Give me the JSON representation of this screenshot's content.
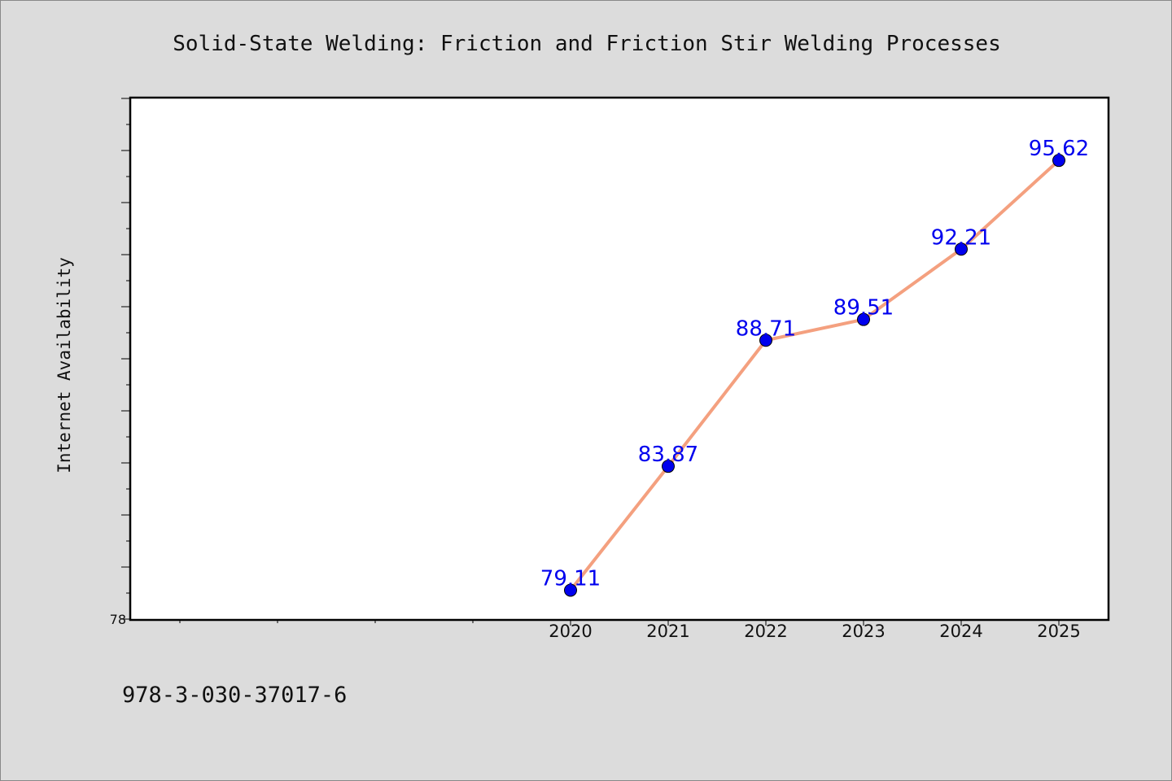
{
  "chart_data": {
    "type": "line",
    "title": "Solid-State Welding: Friction and Friction Stir Welding Processes",
    "xlabel": "",
    "ylabel": "Internet Availability",
    "x_tick_labels": [
      "2020",
      "2021",
      "2022",
      "2023",
      "2024",
      "2025"
    ],
    "y_tick_labels": [
      "78"
    ],
    "ylim": [
      78,
      98
    ],
    "grid": false,
    "series": [
      {
        "x": [
          "2020",
          "2021",
          "2022",
          "2023",
          "2024",
          "2025"
        ],
        "values": [
          79.11,
          83.87,
          88.71,
          89.51,
          92.21,
          95.62
        ],
        "data_labels": [
          "79.11",
          "83.87",
          "88.71",
          "89.51",
          "92.21",
          "95.62"
        ]
      }
    ],
    "colors": {
      "line": "#f4a07f",
      "marker": "#0000ee",
      "data_label": "#0000ee",
      "plot_background": "#ffffff",
      "page_background": "#dcdcdc"
    }
  },
  "footer": {
    "identifier": "978-3-030-37017-6"
  }
}
